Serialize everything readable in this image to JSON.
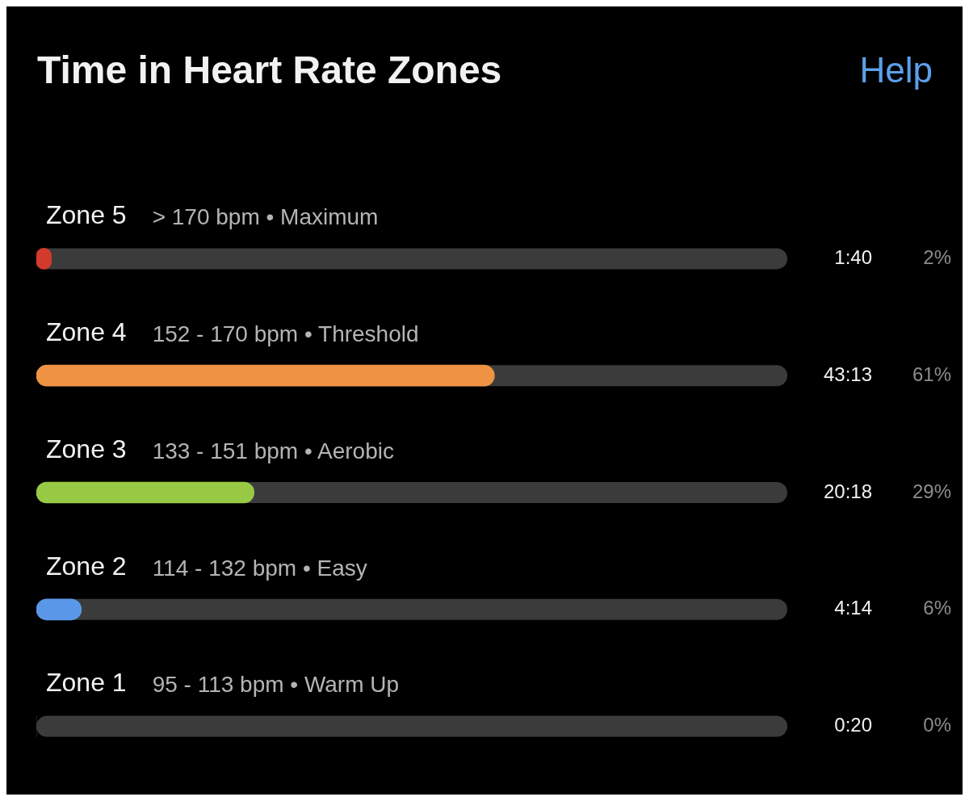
{
  "chart_data": {
    "type": "bar",
    "orientation": "horizontal",
    "title": "Time in Heart Rate Zones",
    "categories": [
      "Zone 5",
      "Zone 4",
      "Zone 3",
      "Zone 2",
      "Zone 1"
    ],
    "values": [
      2,
      61,
      29,
      6,
      0
    ],
    "colors": [
      "#d23a2e",
      "#ee9343",
      "#98c945",
      "#5b97e9",
      "#5b5b5b"
    ],
    "value_labels": [
      "2%",
      "61%",
      "29%",
      "6%",
      "0%"
    ],
    "xlim": [
      0,
      100
    ],
    "annotations": [
      "> 170 bpm • Maximum",
      "152 - 170 bpm • Threshold",
      "133 - 151 bpm • Aerobic",
      "114 - 132 bpm • Easy",
      "95 - 113 bpm • Warm Up",
      "1:40",
      "43:13",
      "20:18",
      "4:14",
      "0:20",
      "Help"
    ],
    "legend": false,
    "tick_labels": false
  }
}
